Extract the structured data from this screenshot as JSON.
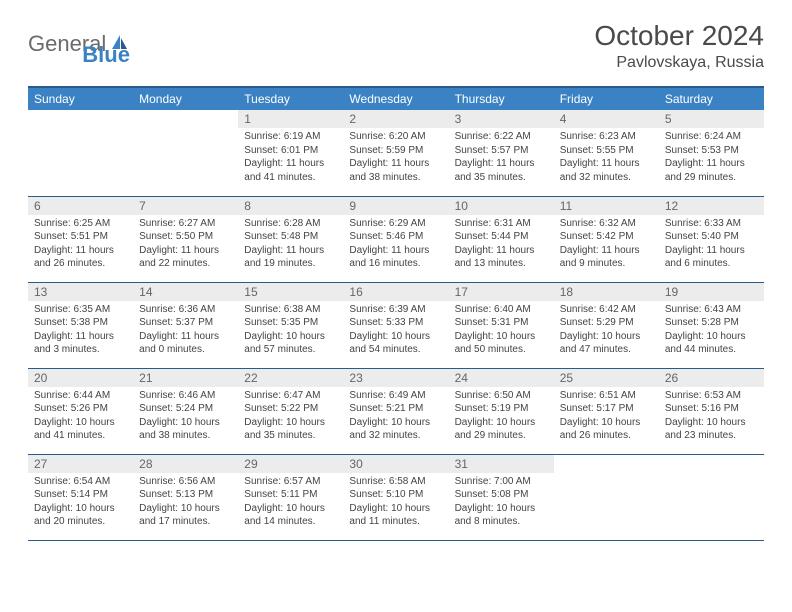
{
  "logo": {
    "text_gray": "General",
    "text_blue": "Blue"
  },
  "title": "October 2024",
  "location": "Pavlovskaya, Russia",
  "day_headers": [
    "Sunday",
    "Monday",
    "Tuesday",
    "Wednesday",
    "Thursday",
    "Friday",
    "Saturday"
  ],
  "colors": {
    "header_bg": "#3b82c4",
    "header_border": "#2a5a8a",
    "daynum_bg": "#ececec",
    "text": "#333333"
  },
  "weeks": [
    [
      {
        "empty": true
      },
      {
        "empty": true
      },
      {
        "num": "1",
        "sunrise": "Sunrise: 6:19 AM",
        "sunset": "Sunset: 6:01 PM",
        "daylight": "Daylight: 11 hours and 41 minutes."
      },
      {
        "num": "2",
        "sunrise": "Sunrise: 6:20 AM",
        "sunset": "Sunset: 5:59 PM",
        "daylight": "Daylight: 11 hours and 38 minutes."
      },
      {
        "num": "3",
        "sunrise": "Sunrise: 6:22 AM",
        "sunset": "Sunset: 5:57 PM",
        "daylight": "Daylight: 11 hours and 35 minutes."
      },
      {
        "num": "4",
        "sunrise": "Sunrise: 6:23 AM",
        "sunset": "Sunset: 5:55 PM",
        "daylight": "Daylight: 11 hours and 32 minutes."
      },
      {
        "num": "5",
        "sunrise": "Sunrise: 6:24 AM",
        "sunset": "Sunset: 5:53 PM",
        "daylight": "Daylight: 11 hours and 29 minutes."
      }
    ],
    [
      {
        "num": "6",
        "sunrise": "Sunrise: 6:25 AM",
        "sunset": "Sunset: 5:51 PM",
        "daylight": "Daylight: 11 hours and 26 minutes."
      },
      {
        "num": "7",
        "sunrise": "Sunrise: 6:27 AM",
        "sunset": "Sunset: 5:50 PM",
        "daylight": "Daylight: 11 hours and 22 minutes."
      },
      {
        "num": "8",
        "sunrise": "Sunrise: 6:28 AM",
        "sunset": "Sunset: 5:48 PM",
        "daylight": "Daylight: 11 hours and 19 minutes."
      },
      {
        "num": "9",
        "sunrise": "Sunrise: 6:29 AM",
        "sunset": "Sunset: 5:46 PM",
        "daylight": "Daylight: 11 hours and 16 minutes."
      },
      {
        "num": "10",
        "sunrise": "Sunrise: 6:31 AM",
        "sunset": "Sunset: 5:44 PM",
        "daylight": "Daylight: 11 hours and 13 minutes."
      },
      {
        "num": "11",
        "sunrise": "Sunrise: 6:32 AM",
        "sunset": "Sunset: 5:42 PM",
        "daylight": "Daylight: 11 hours and 9 minutes."
      },
      {
        "num": "12",
        "sunrise": "Sunrise: 6:33 AM",
        "sunset": "Sunset: 5:40 PM",
        "daylight": "Daylight: 11 hours and 6 minutes."
      }
    ],
    [
      {
        "num": "13",
        "sunrise": "Sunrise: 6:35 AM",
        "sunset": "Sunset: 5:38 PM",
        "daylight": "Daylight: 11 hours and 3 minutes."
      },
      {
        "num": "14",
        "sunrise": "Sunrise: 6:36 AM",
        "sunset": "Sunset: 5:37 PM",
        "daylight": "Daylight: 11 hours and 0 minutes."
      },
      {
        "num": "15",
        "sunrise": "Sunrise: 6:38 AM",
        "sunset": "Sunset: 5:35 PM",
        "daylight": "Daylight: 10 hours and 57 minutes."
      },
      {
        "num": "16",
        "sunrise": "Sunrise: 6:39 AM",
        "sunset": "Sunset: 5:33 PM",
        "daylight": "Daylight: 10 hours and 54 minutes."
      },
      {
        "num": "17",
        "sunrise": "Sunrise: 6:40 AM",
        "sunset": "Sunset: 5:31 PM",
        "daylight": "Daylight: 10 hours and 50 minutes."
      },
      {
        "num": "18",
        "sunrise": "Sunrise: 6:42 AM",
        "sunset": "Sunset: 5:29 PM",
        "daylight": "Daylight: 10 hours and 47 minutes."
      },
      {
        "num": "19",
        "sunrise": "Sunrise: 6:43 AM",
        "sunset": "Sunset: 5:28 PM",
        "daylight": "Daylight: 10 hours and 44 minutes."
      }
    ],
    [
      {
        "num": "20",
        "sunrise": "Sunrise: 6:44 AM",
        "sunset": "Sunset: 5:26 PM",
        "daylight": "Daylight: 10 hours and 41 minutes."
      },
      {
        "num": "21",
        "sunrise": "Sunrise: 6:46 AM",
        "sunset": "Sunset: 5:24 PM",
        "daylight": "Daylight: 10 hours and 38 minutes."
      },
      {
        "num": "22",
        "sunrise": "Sunrise: 6:47 AM",
        "sunset": "Sunset: 5:22 PM",
        "daylight": "Daylight: 10 hours and 35 minutes."
      },
      {
        "num": "23",
        "sunrise": "Sunrise: 6:49 AM",
        "sunset": "Sunset: 5:21 PM",
        "daylight": "Daylight: 10 hours and 32 minutes."
      },
      {
        "num": "24",
        "sunrise": "Sunrise: 6:50 AM",
        "sunset": "Sunset: 5:19 PM",
        "daylight": "Daylight: 10 hours and 29 minutes."
      },
      {
        "num": "25",
        "sunrise": "Sunrise: 6:51 AM",
        "sunset": "Sunset: 5:17 PM",
        "daylight": "Daylight: 10 hours and 26 minutes."
      },
      {
        "num": "26",
        "sunrise": "Sunrise: 6:53 AM",
        "sunset": "Sunset: 5:16 PM",
        "daylight": "Daylight: 10 hours and 23 minutes."
      }
    ],
    [
      {
        "num": "27",
        "sunrise": "Sunrise: 6:54 AM",
        "sunset": "Sunset: 5:14 PM",
        "daylight": "Daylight: 10 hours and 20 minutes."
      },
      {
        "num": "28",
        "sunrise": "Sunrise: 6:56 AM",
        "sunset": "Sunset: 5:13 PM",
        "daylight": "Daylight: 10 hours and 17 minutes."
      },
      {
        "num": "29",
        "sunrise": "Sunrise: 6:57 AM",
        "sunset": "Sunset: 5:11 PM",
        "daylight": "Daylight: 10 hours and 14 minutes."
      },
      {
        "num": "30",
        "sunrise": "Sunrise: 6:58 AM",
        "sunset": "Sunset: 5:10 PM",
        "daylight": "Daylight: 10 hours and 11 minutes."
      },
      {
        "num": "31",
        "sunrise": "Sunrise: 7:00 AM",
        "sunset": "Sunset: 5:08 PM",
        "daylight": "Daylight: 10 hours and 8 minutes."
      },
      {
        "empty": true
      },
      {
        "empty": true
      }
    ]
  ]
}
